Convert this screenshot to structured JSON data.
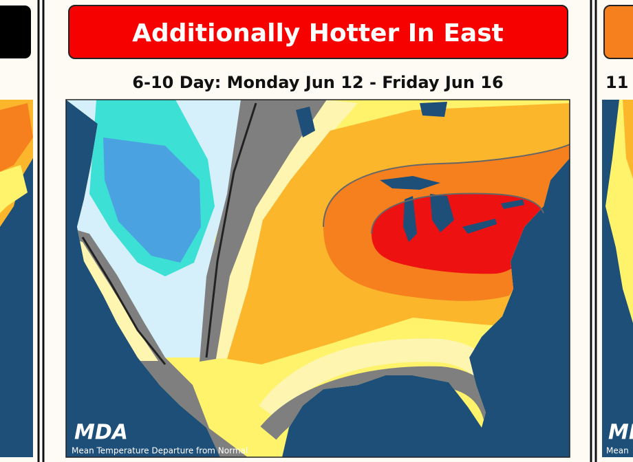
{
  "center_panel": {
    "title": "Additionally Hotter In East",
    "subtitle": "6-10 Day: Monday Jun 12 - Friday Jun 16",
    "logo": "MDA",
    "caption": "Mean Temperature Departure from Normal"
  },
  "right_panel": {
    "subtitle": "11",
    "logo": "MDA",
    "caption": "Mean"
  }
}
